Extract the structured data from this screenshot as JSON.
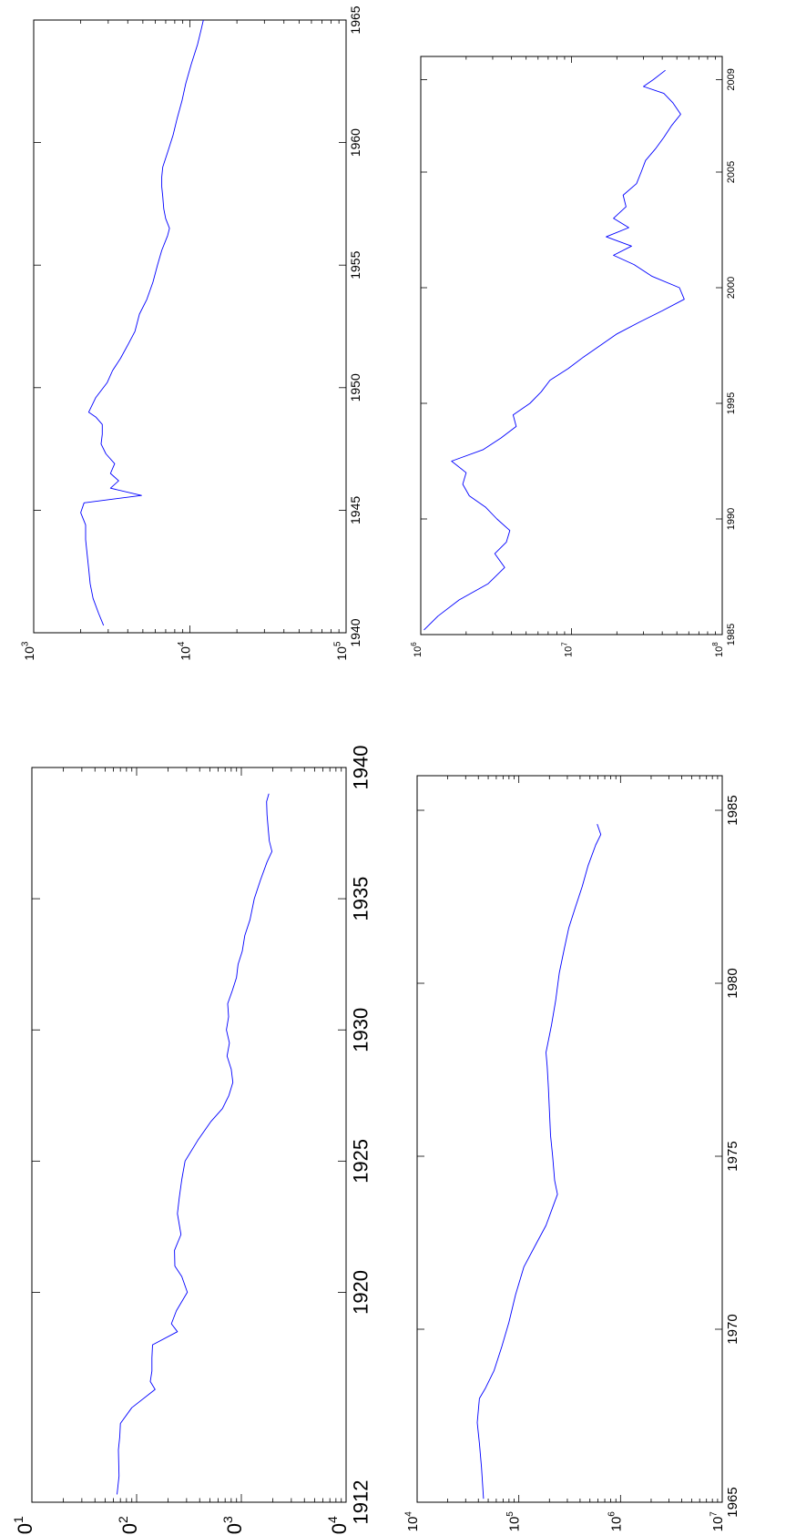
{
  "chart_data": [
    {
      "type": "line",
      "title": "",
      "xlabel": "",
      "ylabel": "",
      "x_ticks": [
        "1912",
        "1920",
        "1925",
        "1930",
        "1935",
        "1940"
      ],
      "y_ticks": [
        {
          "base": "10",
          "exp": "1"
        },
        {
          "base": "10",
          "exp": "2"
        },
        {
          "base": "10",
          "exp": "3"
        },
        {
          "base": "10",
          "exp": "4"
        }
      ],
      "xlim": [
        1912,
        1940
      ],
      "ylim": [
        10,
        10000
      ],
      "yscale": "log",
      "grid": false,
      "color": "#0000ff",
      "series": [
        {
          "x": [
            1912.3,
            1913.0,
            1914.0,
            1914.5,
            1915.0,
            1915.6,
            1916.3,
            1916.6,
            1917.0,
            1917.5,
            1918.0,
            1918.5,
            1918.8,
            1919.3,
            1920.0,
            1920.6,
            1921.0,
            1921.6,
            1922.2,
            1923.0,
            1923.6,
            1924.3,
            1925.0,
            1925.8,
            1926.5,
            1927.0,
            1927.5,
            1928.0,
            1928.5,
            1929.0,
            1929.5,
            1930.0,
            1930.5,
            1931.0,
            1931.5,
            1932.0,
            1932.5,
            1933.0,
            1933.6,
            1934.2,
            1935.0,
            1935.7,
            1936.4,
            1936.8,
            1937.2,
            1937.7,
            1938.2,
            1938.7,
            1939.0
          ],
          "y": [
            65,
            68,
            67,
            69,
            70,
            90,
            150,
            135,
            140,
            140,
            142,
            245,
            215,
            240,
            305,
            270,
            232,
            230,
            265,
            245,
            255,
            270,
            290,
            385,
            510,
            660,
            760,
            830,
            800,
            730,
            770,
            720,
            755,
            740,
            820,
            900,
            930,
            1020,
            1080,
            1210,
            1330,
            1520,
            1760,
            1960,
            1850,
            1800,
            1760,
            1740,
            1830
          ]
        }
      ]
    },
    {
      "type": "line",
      "title": "",
      "xlabel": "",
      "ylabel": "",
      "x_ticks": [
        "1940",
        "1945",
        "1950",
        "1955",
        "1960",
        "1965"
      ],
      "y_ticks": [
        {
          "base": "10",
          "exp": "3"
        },
        {
          "base": "10",
          "exp": "4"
        },
        {
          "base": "10",
          "exp": "5"
        }
      ],
      "xlim": [
        1940,
        1965
      ],
      "ylim": [
        1000,
        100000
      ],
      "yscale": "log",
      "grid": false,
      "color": "#0000ff",
      "series": [
        {
          "x": [
            1940.3,
            1940.8,
            1941.4,
            1942.0,
            1942.6,
            1943.2,
            1943.8,
            1944.4,
            1944.9,
            1945.3,
            1945.6,
            1945.9,
            1946.2,
            1946.5,
            1946.9,
            1947.3,
            1947.7,
            1948.1,
            1948.5,
            1948.8,
            1949.0,
            1949.6,
            1950.2,
            1950.7,
            1951.2,
            1951.8,
            1952.3,
            1953.0,
            1953.6,
            1954.3,
            1955.0,
            1955.6,
            1956.2,
            1956.5,
            1956.9,
            1957.3,
            1957.8,
            1958.2,
            1958.6,
            1959.0,
            1959.6,
            1960.3,
            1961.0,
            1961.7,
            1962.4,
            1963.2,
            1964.0,
            1964.6,
            1965.0
          ],
          "y": [
            2800,
            2600,
            2400,
            2300,
            2250,
            2200,
            2150,
            2150,
            2000,
            2100,
            4900,
            3100,
            3500,
            3100,
            3300,
            2900,
            2700,
            2750,
            2750,
            2500,
            2250,
            2500,
            2950,
            3200,
            3600,
            4050,
            4450,
            4750,
            5300,
            5800,
            6200,
            6600,
            7200,
            7400,
            7000,
            6800,
            6700,
            6600,
            6600,
            6700,
            7200,
            7800,
            8300,
            8900,
            9400,
            10200,
            11200,
            11800,
            12200
          ]
        }
      ]
    },
    {
      "type": "line",
      "title": "",
      "xlabel": "",
      "ylabel": "",
      "x_ticks": [
        "1965",
        "1970",
        "1975",
        "1980",
        "1985"
      ],
      "y_ticks": [
        {
          "base": "10",
          "exp": "4"
        },
        {
          "base": "10",
          "exp": "5"
        },
        {
          "base": "10",
          "exp": "6"
        },
        {
          "base": "10",
          "exp": "7"
        }
      ],
      "xlim": [
        1965,
        1986
      ],
      "ylim": [
        10000,
        10000000
      ],
      "yscale": "log",
      "grid": false,
      "color": "#0000ff",
      "series": [
        {
          "x": [
            1965.1,
            1966.0,
            1966.7,
            1967.3,
            1968.0,
            1968.3,
            1968.8,
            1969.5,
            1970.2,
            1971.0,
            1971.8,
            1972.5,
            1973.0,
            1973.6,
            1973.9,
            1974.3,
            1975.0,
            1975.6,
            1976.3,
            1977.0,
            1977.6,
            1978.0,
            1978.8,
            1979.5,
            1980.3,
            1981.0,
            1981.6,
            1982.2,
            1982.8,
            1983.4,
            1984.0,
            1984.3,
            1984.6
          ],
          "y": [
            45000,
            43000,
            41000,
            39000,
            41000,
            47000,
            57000,
            68000,
            80000,
            93000,
            112000,
            150000,
            185000,
            220000,
            240000,
            225000,
            215000,
            205000,
            200000,
            195000,
            190000,
            185000,
            210000,
            230000,
            250000,
            280000,
            310000,
            360000,
            420000,
            480000,
            570000,
            640000,
            590000
          ]
        }
      ]
    },
    {
      "type": "line",
      "title": "",
      "xlabel": "",
      "ylabel": "",
      "x_ticks": [
        "1985",
        "1990",
        "1995",
        "2000",
        "2005",
        "2009"
      ],
      "y_ticks": [
        {
          "base": "10",
          "exp": "6"
        },
        {
          "base": "10",
          "exp": "7"
        },
        {
          "base": "10",
          "exp": "8"
        }
      ],
      "xlim": [
        1985,
        2010
      ],
      "ylim": [
        1000000,
        100000000
      ],
      "yscale": "log",
      "grid": false,
      "color": "#0000ff",
      "series": [
        {
          "x": [
            1985.2,
            1985.8,
            1986.5,
            1987.2,
            1987.9,
            1988.5,
            1989.0,
            1989.5,
            1990.0,
            1990.5,
            1991.0,
            1991.5,
            1992.0,
            1992.5,
            1993.0,
            1993.5,
            1994.0,
            1994.5,
            1995.0,
            1995.5,
            1996.0,
            1996.5,
            1997.0,
            1997.5,
            1998.0,
            1998.5,
            1999.0,
            1999.5,
            2000.0,
            2000.5,
            2001.0,
            2001.4,
            2001.8,
            2002.2,
            2002.6,
            2003.0,
            2003.5,
            2004.0,
            2004.5,
            2005.0,
            2005.5,
            2006.0,
            2006.5,
            2007.0,
            2007.5,
            2008.0,
            2008.4,
            2008.7,
            2009.0,
            2009.4
          ],
          "y": [
            1050000,
            1300000,
            1800000,
            2800000,
            3600000,
            3100000,
            3700000,
            3900000,
            3200000,
            2700000,
            2100000,
            1900000,
            2000000,
            1600000,
            2600000,
            3400000,
            4300000,
            4100000,
            5300000,
            6300000,
            7200000,
            9500000,
            12000000,
            15500000,
            20000000,
            28000000,
            40000000,
            56000000,
            52000000,
            34000000,
            26000000,
            19000000,
            25000000,
            17000000,
            24000000,
            19000000,
            23000000,
            22000000,
            27000000,
            29000000,
            31000000,
            36000000,
            41000000,
            46000000,
            53000000,
            47000000,
            41000000,
            30000000,
            35000000,
            42000000
          ]
        }
      ]
    }
  ]
}
